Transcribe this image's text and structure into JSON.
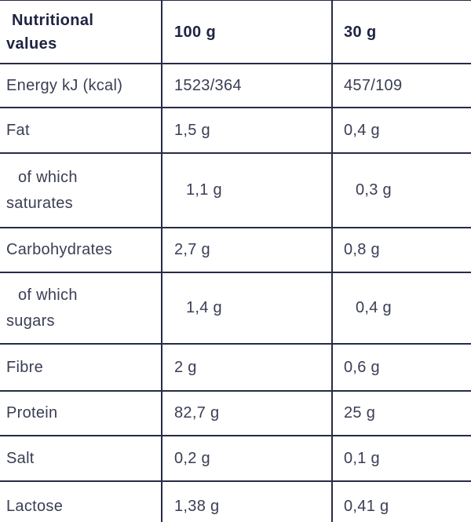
{
  "colors": {
    "text": "#3a3e54",
    "heading_text": "#1e2342",
    "border": "#262b47",
    "background": "#ffffff"
  },
  "table": {
    "header": {
      "label": "Nutritional\nvalues",
      "col_100g": "100 g",
      "col_30g": "30 g"
    },
    "rows": [
      {
        "label": "Energy kJ (kcal)",
        "per_100g": "1523/364",
        "per_30g": "457/109"
      },
      {
        "label": "Fat",
        "per_100g": "1,5 g",
        "per_30g": "0,4 g"
      },
      {
        "label": "of which\nsaturates",
        "per_100g": "1,1 g",
        "per_30g": "0,3 g"
      },
      {
        "label": "Carbohydrates",
        "per_100g": "2,7 g",
        "per_30g": "0,8 g"
      },
      {
        "label": "of which\nsugars",
        "per_100g": "1,4 g",
        "per_30g": "0,4 g"
      },
      {
        "label": "Fibre",
        "per_100g": "2 g",
        "per_30g": "0,6 g"
      },
      {
        "label": "Protein",
        "per_100g": "82,7 g",
        "per_30g": "25 g"
      },
      {
        "label": "Salt",
        "per_100g": "0,2 g",
        "per_30g": "0,1 g"
      },
      {
        "label": "Lactose",
        "per_100g": "1,38 g",
        "per_30g": "0,41 g"
      }
    ]
  },
  "chart_data": {
    "type": "table",
    "title": "Nutritional values",
    "columns": [
      "Nutritional values",
      "100 g",
      "30 g"
    ],
    "rows": [
      [
        "Energy kJ (kcal)",
        "1523/364",
        "457/109"
      ],
      [
        "Fat",
        "1,5 g",
        "0,4 g"
      ],
      [
        "of which saturates",
        "1,1 g",
        "0,3 g"
      ],
      [
        "Carbohydrates",
        "2,7 g",
        "0,8 g"
      ],
      [
        "of which sugars",
        "1,4 g",
        "0,4 g"
      ],
      [
        "Fibre",
        "2 g",
        "0,6 g"
      ],
      [
        "Protein",
        "82,7 g",
        "25 g"
      ],
      [
        "Salt",
        "0,2 g",
        "0,1 g"
      ],
      [
        "Lactose",
        "1,38 g",
        "0,41 g"
      ]
    ]
  }
}
